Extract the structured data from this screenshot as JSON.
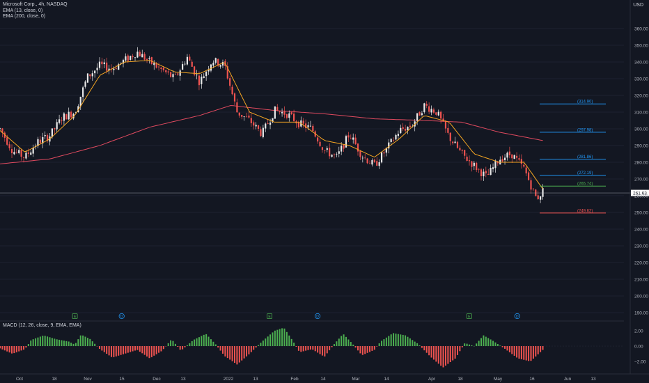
{
  "header": {
    "symbol_line": "Microsoft Corp., 4h, NASDAQ",
    "ema_fast_label": "EMA (13, close, 0)",
    "ema_slow_label": "EMA (200, close, 0)",
    "currency": "USD",
    "macd_label": "MACD (12, 26, close, 9, EMA, EMA)"
  },
  "colors": {
    "background": "#131722",
    "up": "#e8e8e8",
    "down": "#ef5350",
    "ema_fast": "#f5a623",
    "ema_slow": "#e04a5f",
    "hist_up": "#4caf50",
    "hist_down": "#ef5350",
    "target_blue": "#2196f3",
    "target_green": "#4caf50",
    "target_red": "#ef5350",
    "price_line": "#b2b5be"
  },
  "chart_data": [
    {
      "type": "candlestick",
      "title": "Microsoft Corp., 4h, NASDAQ",
      "y_unit": "USD",
      "ylim": [
        190,
        370
      ],
      "y_ticks": [
        360,
        350,
        340,
        330,
        320,
        310,
        300,
        290,
        280,
        270,
        260,
        250,
        240,
        230,
        220,
        210,
        200,
        190
      ],
      "y_tick_labels": [
        "360.00",
        "350.00",
        "340.00",
        "330.00",
        "320.00",
        "310.00",
        "300.00",
        "290.00",
        "280.00",
        "270.00",
        "260.00",
        "250.00",
        "240.00",
        "230.00",
        "220.00",
        "210.00",
        "200.00",
        "190.00"
      ],
      "x_labels": [
        "Oct",
        "18",
        "Nov",
        "15",
        "Dec",
        "13",
        "2022",
        "13",
        "Feb",
        "14",
        "Mar",
        "14",
        "Apr",
        "18",
        "May",
        "16",
        "Jun",
        "13"
      ],
      "last_price": 261.63,
      "last_price_label": "261.63",
      "price_path": [
        {
          "x": 0,
          "p": 300
        },
        {
          "x": 0.02,
          "p": 287
        },
        {
          "x": 0.04,
          "p": 283
        },
        {
          "x": 0.06,
          "p": 292
        },
        {
          "x": 0.08,
          "p": 296
        },
        {
          "x": 0.1,
          "p": 307
        },
        {
          "x": 0.12,
          "p": 310
        },
        {
          "x": 0.14,
          "p": 331
        },
        {
          "x": 0.16,
          "p": 338
        },
        {
          "x": 0.18,
          "p": 336
        },
        {
          "x": 0.2,
          "p": 341
        },
        {
          "x": 0.22,
          "p": 346
        },
        {
          "x": 0.24,
          "p": 340
        },
        {
          "x": 0.26,
          "p": 335
        },
        {
          "x": 0.28,
          "p": 330
        },
        {
          "x": 0.3,
          "p": 343
        },
        {
          "x": 0.32,
          "p": 328
        },
        {
          "x": 0.34,
          "p": 341
        },
        {
          "x": 0.36,
          "p": 338
        },
        {
          "x": 0.38,
          "p": 310
        },
        {
          "x": 0.4,
          "p": 305
        },
        {
          "x": 0.42,
          "p": 297
        },
        {
          "x": 0.44,
          "p": 311
        },
        {
          "x": 0.46,
          "p": 309
        },
        {
          "x": 0.48,
          "p": 303
        },
        {
          "x": 0.5,
          "p": 300
        },
        {
          "x": 0.52,
          "p": 287
        },
        {
          "x": 0.54,
          "p": 283
        },
        {
          "x": 0.56,
          "p": 297
        },
        {
          "x": 0.58,
          "p": 284
        },
        {
          "x": 0.6,
          "p": 278
        },
        {
          "x": 0.62,
          "p": 288
        },
        {
          "x": 0.64,
          "p": 299
        },
        {
          "x": 0.66,
          "p": 302
        },
        {
          "x": 0.68,
          "p": 314
        },
        {
          "x": 0.7,
          "p": 310
        },
        {
          "x": 0.72,
          "p": 295
        },
        {
          "x": 0.74,
          "p": 285
        },
        {
          "x": 0.76,
          "p": 278
        },
        {
          "x": 0.78,
          "p": 271
        },
        {
          "x": 0.8,
          "p": 282
        },
        {
          "x": 0.82,
          "p": 285
        },
        {
          "x": 0.84,
          "p": 276
        },
        {
          "x": 0.86,
          "p": 258
        },
        {
          "x": 0.87,
          "p": 263
        }
      ],
      "ema_fast_path": [
        {
          "x": 0,
          "p": 299
        },
        {
          "x": 0.04,
          "p": 286
        },
        {
          "x": 0.08,
          "p": 294
        },
        {
          "x": 0.12,
          "p": 308
        },
        {
          "x": 0.16,
          "p": 332
        },
        {
          "x": 0.2,
          "p": 340
        },
        {
          "x": 0.24,
          "p": 341
        },
        {
          "x": 0.28,
          "p": 334
        },
        {
          "x": 0.32,
          "p": 333
        },
        {
          "x": 0.36,
          "p": 340
        },
        {
          "x": 0.4,
          "p": 310
        },
        {
          "x": 0.44,
          "p": 304
        },
        {
          "x": 0.48,
          "p": 304
        },
        {
          "x": 0.52,
          "p": 293
        },
        {
          "x": 0.56,
          "p": 290
        },
        {
          "x": 0.6,
          "p": 283
        },
        {
          "x": 0.64,
          "p": 294
        },
        {
          "x": 0.68,
          "p": 308
        },
        {
          "x": 0.72,
          "p": 304
        },
        {
          "x": 0.76,
          "p": 285
        },
        {
          "x": 0.8,
          "p": 280
        },
        {
          "x": 0.84,
          "p": 280
        },
        {
          "x": 0.87,
          "p": 264
        }
      ],
      "ema_slow_path": [
        {
          "x": 0,
          "p": 279
        },
        {
          "x": 0.08,
          "p": 282
        },
        {
          "x": 0.16,
          "p": 290
        },
        {
          "x": 0.24,
          "p": 301
        },
        {
          "x": 0.32,
          "p": 308
        },
        {
          "x": 0.37,
          "p": 314
        },
        {
          "x": 0.44,
          "p": 311
        },
        {
          "x": 0.52,
          "p": 309
        },
        {
          "x": 0.6,
          "p": 306
        },
        {
          "x": 0.68,
          "p": 305
        },
        {
          "x": 0.74,
          "p": 304
        },
        {
          "x": 0.8,
          "p": 298
        },
        {
          "x": 0.87,
          "p": 293
        }
      ],
      "target_levels": [
        {
          "value": 314.9,
          "label": "(314.90)",
          "color": "#2196f3"
        },
        {
          "value": 297.98,
          "label": "(297.98)",
          "color": "#2196f3"
        },
        {
          "value": 281.86,
          "label": "(281.86)",
          "color": "#2196f3"
        },
        {
          "value": 272.19,
          "label": "(272.19)",
          "color": "#2196f3"
        },
        {
          "value": 265.74,
          "label": "(265.74)",
          "color": "#4caf50"
        },
        {
          "value": 249.62,
          "label": "(249.62)",
          "color": "#ef5350"
        }
      ],
      "event_markers": [
        {
          "x": 0.12,
          "letter": "E"
        },
        {
          "x": 0.195,
          "letter": "D"
        },
        {
          "x": 0.432,
          "letter": "E"
        },
        {
          "x": 0.509,
          "letter": "D"
        },
        {
          "x": 0.752,
          "letter": "E"
        },
        {
          "x": 0.829,
          "letter": "D"
        }
      ]
    },
    {
      "type": "histogram",
      "title": "MACD (12, 26, close, 9, EMA, EMA)",
      "ylim": [
        -3.5,
        2.5
      ],
      "y_ticks": [
        2,
        0,
        -2
      ],
      "y_tick_labels": [
        "2.00",
        "0.00",
        "−2.00"
      ],
      "hist_path": [
        {
          "x": 0,
          "v": -0.3
        },
        {
          "x": 0.02,
          "v": -1.0
        },
        {
          "x": 0.04,
          "v": -0.4
        },
        {
          "x": 0.05,
          "v": 0.8
        },
        {
          "x": 0.07,
          "v": 1.4
        },
        {
          "x": 0.09,
          "v": 0.9
        },
        {
          "x": 0.11,
          "v": 0.6
        },
        {
          "x": 0.12,
          "v": 0.2
        },
        {
          "x": 0.13,
          "v": 1.5
        },
        {
          "x": 0.145,
          "v": 0.9
        },
        {
          "x": 0.16,
          "v": -0.4
        },
        {
          "x": 0.18,
          "v": -1.5
        },
        {
          "x": 0.2,
          "v": -1.0
        },
        {
          "x": 0.22,
          "v": -0.5
        },
        {
          "x": 0.24,
          "v": -1.6
        },
        {
          "x": 0.26,
          "v": -0.6
        },
        {
          "x": 0.275,
          "v": 0.9
        },
        {
          "x": 0.29,
          "v": -0.6
        },
        {
          "x": 0.31,
          "v": 0.8
        },
        {
          "x": 0.33,
          "v": 1.6
        },
        {
          "x": 0.345,
          "v": 0.3
        },
        {
          "x": 0.36,
          "v": -1.3
        },
        {
          "x": 0.38,
          "v": -2.4
        },
        {
          "x": 0.4,
          "v": -1.0
        },
        {
          "x": 0.42,
          "v": 0.6
        },
        {
          "x": 0.44,
          "v": 2.0
        },
        {
          "x": 0.455,
          "v": 2.4
        },
        {
          "x": 0.47,
          "v": 0.6
        },
        {
          "x": 0.48,
          "v": -0.8
        },
        {
          "x": 0.5,
          "v": -0.4
        },
        {
          "x": 0.52,
          "v": -1.4
        },
        {
          "x": 0.535,
          "v": 0.2
        },
        {
          "x": 0.55,
          "v": 1.6
        },
        {
          "x": 0.565,
          "v": 0.3
        },
        {
          "x": 0.58,
          "v": -1.2
        },
        {
          "x": 0.6,
          "v": -0.5
        },
        {
          "x": 0.61,
          "v": 0.6
        },
        {
          "x": 0.63,
          "v": 1.7
        },
        {
          "x": 0.65,
          "v": 1.4
        },
        {
          "x": 0.67,
          "v": 0.3
        },
        {
          "x": 0.69,
          "v": -1.4
        },
        {
          "x": 0.71,
          "v": -2.8
        },
        {
          "x": 0.73,
          "v": -1.6
        },
        {
          "x": 0.745,
          "v": 0.4
        },
        {
          "x": 0.76,
          "v": 0.0
        },
        {
          "x": 0.775,
          "v": 1.4
        },
        {
          "x": 0.79,
          "v": 0.7
        },
        {
          "x": 0.81,
          "v": -0.4
        },
        {
          "x": 0.83,
          "v": -1.6
        },
        {
          "x": 0.85,
          "v": -2.0
        },
        {
          "x": 0.87,
          "v": -0.5
        }
      ]
    }
  ]
}
